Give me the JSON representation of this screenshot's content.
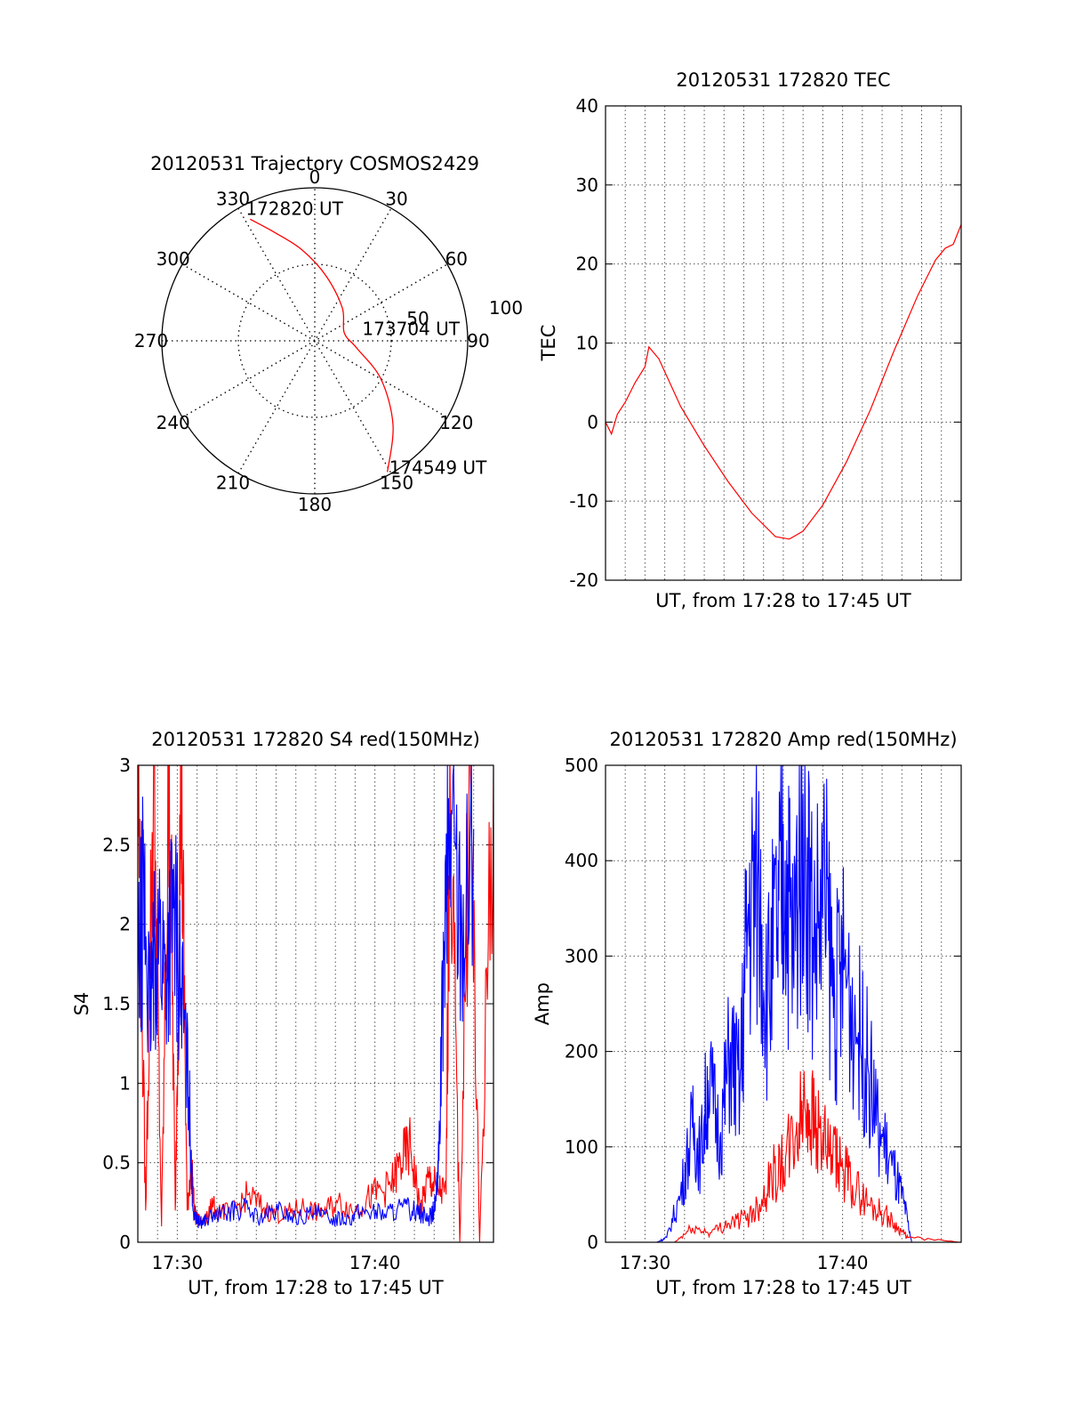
{
  "chart_data": [
    {
      "type": "polar",
      "title": "20120531 Trajectory COSMOS2429",
      "angle_labels": [
        "0",
        "30",
        "60",
        "90",
        "120",
        "150",
        "180",
        "210",
        "240",
        "270",
        "300",
        "330"
      ],
      "radius_labels": [
        "50",
        "100"
      ],
      "rlim": [
        0,
        100
      ],
      "trajectory": {
        "color": "#ff0000",
        "points": [
          [
            332,
            90
          ],
          [
            340,
            75
          ],
          [
            352,
            60
          ],
          [
            10,
            43
          ],
          [
            40,
            28
          ],
          [
            75,
            20
          ],
          [
            100,
            28
          ],
          [
            120,
            50
          ],
          [
            137,
            75
          ],
          [
            151,
            98
          ]
        ]
      },
      "annotations": [
        "172820 UT",
        "173704 UT",
        "174549 UT"
      ]
    },
    {
      "type": "line",
      "title": "20120531 172820 TEC",
      "xlabel": "UT, from 17:28 to 17:45 UT",
      "ylabel": "TEC",
      "xlim": [
        17.4667,
        17.7667
      ],
      "ylim": [
        -20,
        40
      ],
      "yticks": [
        "-20",
        "-10",
        "0",
        "10",
        "20",
        "30",
        "40"
      ],
      "grid": true,
      "series": [
        {
          "color": "#ff0000",
          "x": [
            17.4667,
            17.4717,
            17.4767,
            17.4833,
            17.4917,
            17.5,
            17.5033,
            17.5117,
            17.53,
            17.55,
            17.57,
            17.59,
            17.61,
            17.6217,
            17.6333,
            17.65,
            17.67,
            17.69,
            17.71,
            17.73,
            17.745,
            17.7533,
            17.76,
            17.7667
          ],
          "y": [
            0,
            -1.5,
            1,
            2.5,
            5,
            7,
            9.5,
            8,
            2,
            -3,
            -7.5,
            -11.5,
            -14.5,
            -14.8,
            -13.8,
            -10.5,
            -5,
            1.5,
            9,
            16,
            20.5,
            22,
            22.5,
            25
          ]
        }
      ]
    },
    {
      "type": "line",
      "title": "20120531 172820 S4 red(150MHz)",
      "xlabel": "UT, from 17:28 to 17:45 UT",
      "ylabel": "S4",
      "xlim": [
        17.4667,
        17.7667
      ],
      "ylim": [
        0,
        3
      ],
      "yticks": [
        "0",
        "0.5",
        "1",
        "1.5",
        "2",
        "2.5",
        "3"
      ],
      "xticks": [
        "17:30",
        "17:40"
      ],
      "grid": true,
      "series": [
        {
          "color": "#ff0000",
          "x": [
            17.4667,
            17.4733,
            17.48,
            17.4867,
            17.4933,
            17.4983,
            17.5033,
            17.5083,
            17.5117,
            17.515,
            17.52,
            17.53,
            17.545,
            17.56,
            17.575,
            17.59,
            17.605,
            17.62,
            17.635,
            17.65,
            17.665,
            17.68,
            17.6883,
            17.6967,
            17.705,
            17.7117,
            17.7183,
            17.7267,
            17.73,
            17.7383,
            17.7467,
            17.755,
            17.7667
          ],
          "y": [
            3,
            0.2,
            3,
            0.1,
            3,
            0.2,
            3,
            0.2,
            0.5,
            0.15,
            0.13,
            0.22,
            0.18,
            0.3,
            0.2,
            0.17,
            0.22,
            0.18,
            0.25,
            0.2,
            0.3,
            0.35,
            0.5,
            0.6,
            0.2,
            0.4,
            0.35,
            0.3,
            3,
            0,
            3,
            0,
            3
          ]
        },
        {
          "color": "#0000ff",
          "x": [
            17.4667,
            17.4717,
            17.4767,
            17.4833,
            17.49,
            17.4967,
            17.5033,
            17.51,
            17.5133,
            17.5183,
            17.525,
            17.54,
            17.555,
            17.57,
            17.585,
            17.6,
            17.615,
            17.63,
            17.645,
            17.66,
            17.675,
            17.69,
            17.7017,
            17.7117,
            17.7167,
            17.72,
            17.725,
            17.73,
            17.74,
            17.75
          ],
          "y": [
            1.6,
            2.2,
            1.4,
            2.0,
            1.7,
            2.1,
            1.6,
            0.9,
            0.2,
            0.12,
            0.15,
            0.18,
            0.22,
            0.15,
            0.2,
            0.15,
            0.18,
            0.15,
            0.16,
            0.2,
            0.18,
            0.22,
            0.2,
            0.15,
            0.2,
            0.4,
            1.8,
            2.7,
            2.0,
            2.6
          ]
        }
      ]
    },
    {
      "type": "line",
      "title": "20120531 172820 Amp red(150MHz)",
      "xlabel": "UT, from 17:28 to 17:45 UT",
      "ylabel": "Amp",
      "xlim": [
        17.4667,
        17.7667
      ],
      "ylim": [
        0,
        500
      ],
      "yticks": [
        "0",
        "100",
        "200",
        "300",
        "400",
        "500"
      ],
      "xticks": [
        "17:30",
        "17:40"
      ],
      "grid": true,
      "series": [
        {
          "color": "#0000ff",
          "x": [
            17.4667,
            17.51,
            17.5183,
            17.53,
            17.54,
            17.5467,
            17.5533,
            17.5633,
            17.5717,
            17.58,
            17.5867,
            17.595,
            17.6033,
            17.6117,
            17.6183,
            17.625,
            17.6333,
            17.6417,
            17.6517,
            17.66,
            17.6683,
            17.68,
            17.6883,
            17.6967,
            17.7083,
            17.7183,
            17.725,
            17.7667
          ],
          "y": [
            0,
            0,
            5,
            50,
            120,
            90,
            170,
            110,
            200,
            160,
            340,
            380,
            260,
            330,
            400,
            300,
            470,
            320,
            360,
            250,
            290,
            220,
            180,
            120,
            80,
            40,
            0,
            0
          ]
        },
        {
          "color": "#ff0000",
          "x": [
            17.4667,
            17.525,
            17.54,
            17.555,
            17.57,
            17.585,
            17.5967,
            17.6067,
            17.6167,
            17.6267,
            17.6367,
            17.645,
            17.655,
            17.665,
            17.675,
            17.6883,
            17.7017,
            17.7133,
            17.7217,
            17.7667
          ],
          "y": [
            0,
            0,
            15,
            10,
            20,
            25,
            40,
            70,
            80,
            110,
            150,
            120,
            90,
            80,
            60,
            40,
            30,
            15,
            5,
            0
          ]
        }
      ]
    }
  ]
}
